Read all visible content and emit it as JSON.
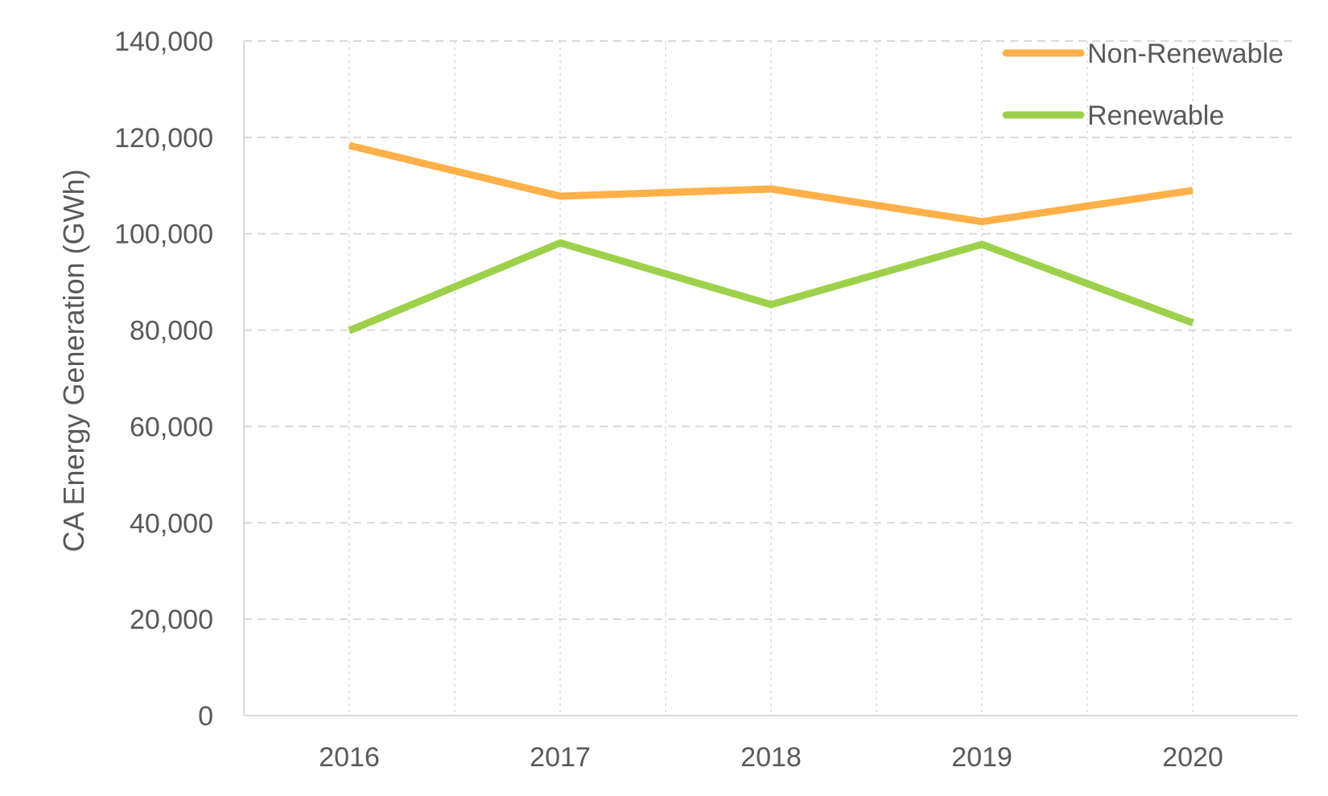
{
  "chart_data": {
    "type": "line",
    "title": "",
    "xlabel": "",
    "ylabel": "CA Energy Generation (GWh)",
    "categories": [
      "2016",
      "2017",
      "2018",
      "2019",
      "2020"
    ],
    "y_ticks": [
      "0",
      "20,000",
      "40,000",
      "60,000",
      "80,000",
      "100,000",
      "120,000",
      "140,000"
    ],
    "ylim": [
      0,
      140000
    ],
    "grid": "dashed horizontal and dotted vertical",
    "legend_position": "top-right",
    "series": [
      {
        "name": "Non-Renewable",
        "color": "#FFB048",
        "values": [
          118300,
          107800,
          109300,
          102500,
          109000
        ]
      },
      {
        "name": "Renewable",
        "color": "#9ED14B",
        "values": [
          79900,
          98100,
          85300,
          97800,
          81500
        ]
      }
    ]
  }
}
